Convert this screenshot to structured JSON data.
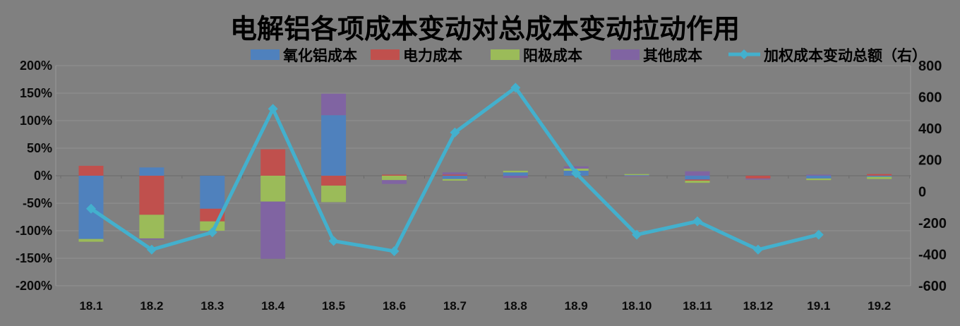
{
  "chart_data": {
    "type": "bar",
    "subtype": "stacked-bar-with-line-combo",
    "title": "电解铝各项成本变动对总成本变动拉动作用",
    "background_color": "#808080",
    "grid": true,
    "legend_position": "top",
    "categories": [
      "18.1",
      "18.2",
      "18.3",
      "18.4",
      "18.5",
      "18.6",
      "18.7",
      "18.8",
      "18.9",
      "18.10",
      "18.11",
      "18.12",
      "19.1",
      "19.2"
    ],
    "bar_value_unit": "percent, left axis",
    "bar_series": [
      {
        "id": "alumina-cost",
        "name": "氧化铝成本",
        "color": "#4f81bd",
        "values": [
          -115,
          15,
          -60,
          0,
          110,
          0,
          -6,
          6,
          9,
          1,
          -7,
          0,
          -5,
          -2
        ]
      },
      {
        "id": "electricity-cost",
        "name": "电力成本",
        "color": "#c0504d",
        "values": [
          18,
          -71,
          -23,
          48,
          -18,
          2,
          2,
          0,
          0,
          0,
          -2,
          -5,
          0,
          3
        ]
      },
      {
        "id": "anode-cost",
        "name": "阳极成本",
        "color": "#9bbb59",
        "values": [
          -5,
          -43,
          -17,
          -47,
          -30,
          -8,
          -3,
          3,
          4,
          2,
          -4,
          0,
          -3,
          -4
        ]
      },
      {
        "id": "other-cost",
        "name": "其他成本",
        "color": "#8064a2",
        "values": [
          0,
          -2,
          0,
          -104,
          39,
          -7,
          4,
          -4,
          4,
          -1,
          8,
          -2,
          2,
          0
        ]
      }
    ],
    "line_series": {
      "id": "weighted-total-cost-change",
      "name": "加权成本变动总额（右）",
      "color": "#43b0cd",
      "axis": "right",
      "values": [
        -110,
        -370,
        -260,
        525,
        -315,
        -380,
        375,
        660,
        115,
        -275,
        -190,
        -370,
        -275,
        null
      ]
    },
    "left_axis": {
      "min": -200,
      "max": 200,
      "step": 50,
      "tick_labels": [
        "200%",
        "150%",
        "100%",
        "50%",
        "0%",
        "-50%",
        "-100%",
        "-150%",
        "-200%"
      ]
    },
    "right_axis": {
      "min": -600,
      "max": 800,
      "step": 200,
      "tick_labels": [
        "800",
        "600",
        "400",
        "200",
        "0",
        "-200",
        "-400",
        "-600"
      ]
    }
  }
}
